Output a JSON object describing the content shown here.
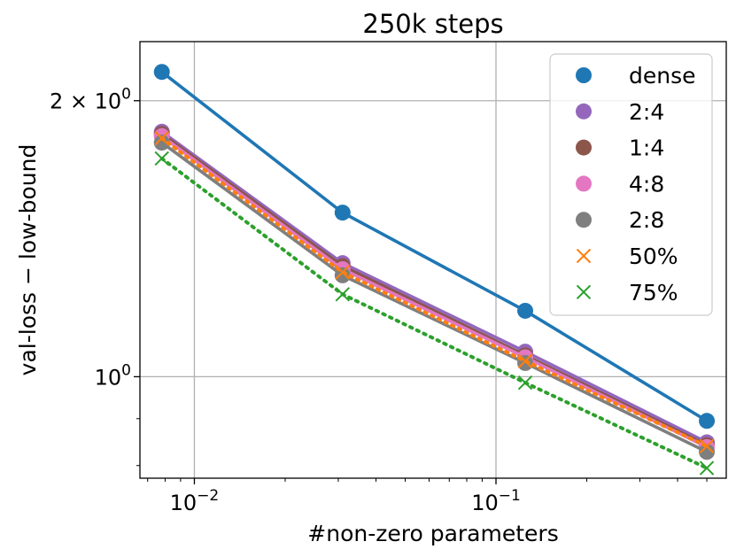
{
  "chart_data": {
    "type": "line",
    "title": "250k steps",
    "xlabel": "#non-zero parameters",
    "ylabel": "val-loss − low-bound",
    "xscale": "log",
    "yscale": "log",
    "xlim": [
      0.0066,
      0.58
    ],
    "ylim": [
      0.775,
      2.32
    ],
    "grid": true,
    "legend_position": "top-right",
    "x_major_ticks": [
      {
        "value": 0.01,
        "base": "10",
        "exp": "−2"
      },
      {
        "value": 0.1,
        "base": "10",
        "exp": "−1"
      }
    ],
    "y_major_ticks": [
      {
        "value": 1.0,
        "prefix": "",
        "base": "10",
        "exp": "0"
      },
      {
        "value": 2.0,
        "prefix": "2 × ",
        "base": "10",
        "exp": "0"
      }
    ],
    "x": [
      0.0078,
      0.031,
      0.125,
      0.5
    ],
    "series": [
      {
        "name": "dense",
        "marker": "circle",
        "line": "solid",
        "color": "#1f77b4",
        "values": [
          2.15,
          1.51,
          1.18,
          0.895
        ]
      },
      {
        "name": "2:4",
        "marker": "circle",
        "line": "solid",
        "color": "#9467bd",
        "values": [
          1.85,
          1.33,
          1.065,
          0.848
        ]
      },
      {
        "name": "1:4",
        "marker": "circle",
        "line": "solid",
        "color": "#8c564b",
        "values": [
          1.84,
          1.32,
          1.055,
          0.842
        ]
      },
      {
        "name": "4:8",
        "marker": "circle",
        "line": "solid",
        "color": "#e377c2",
        "values": [
          1.83,
          1.31,
          1.05,
          0.838
        ]
      },
      {
        "name": "2:8",
        "marker": "circle",
        "line": "solid",
        "color": "#7f7f7f",
        "values": [
          1.8,
          1.29,
          1.035,
          0.828
        ]
      },
      {
        "name": "50%",
        "marker": "x",
        "line": "dotted",
        "color": "#ff7f0e",
        "values": [
          1.82,
          1.3,
          1.04,
          0.84
        ]
      },
      {
        "name": "75%",
        "marker": "x",
        "line": "dotted",
        "color": "#2ca02c",
        "values": [
          1.73,
          1.23,
          0.985,
          0.795
        ]
      }
    ]
  }
}
